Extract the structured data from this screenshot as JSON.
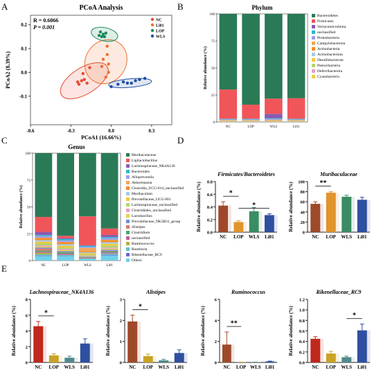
{
  "panels": [
    {
      "letter": "A"
    },
    {
      "letter": "B"
    },
    {
      "letter": "C"
    },
    {
      "letter": "D"
    },
    {
      "letter": "E"
    }
  ],
  "chart_data": [
    {
      "id": "A",
      "type": "scatter",
      "title": "PCoA Analysis",
      "xlabel": "PCoA1 (16.66%)",
      "ylabel": "PCoA2 (8.39%)",
      "xlim": [
        -0.6,
        0.45
      ],
      "ylim": [
        -0.22,
        0.24
      ],
      "xticks": [
        -0.6,
        -0.3,
        0.0,
        0.3
      ],
      "yticks": [
        -0.1,
        0.0,
        0.1,
        0.2
      ],
      "stats": [
        "R = 0.6066",
        "P = 0.001"
      ],
      "groups": [
        {
          "name": "NC",
          "color": "#e64b35",
          "points": [
            [
              -0.22,
              -0.035
            ],
            [
              -0.25,
              -0.04
            ],
            [
              -0.21,
              -0.005
            ],
            [
              -0.2,
              -0.03
            ],
            [
              -0.24,
              -0.05
            ],
            [
              -0.18,
              -0.045
            ],
            [
              -0.16,
              0.02
            ]
          ],
          "ellipse": {
            "cx": -0.2,
            "cy": -0.035,
            "rx": 0.2,
            "ry": 0.055,
            "angle": 32
          }
        },
        {
          "name": "Li01",
          "color": "#ee6f31",
          "points": [
            [
              -0.03,
              0.11
            ],
            [
              -0.03,
              0.075
            ],
            [
              -0.02,
              0.035
            ],
            [
              -0.02,
              0.0
            ],
            [
              -0.04,
              -0.02
            ],
            [
              -0.07,
              0.025
            ],
            [
              -0.06,
              0.055
            ]
          ],
          "ellipse": {
            "cx": -0.04,
            "cy": 0.045,
            "rx": 0.17,
            "ry": 0.085,
            "angle": 55
          }
        },
        {
          "name": "LOP",
          "color": "#1b8a5a",
          "points": [
            [
              -0.09,
              0.155
            ],
            [
              -0.08,
              0.17
            ],
            [
              -0.06,
              0.16
            ],
            [
              -0.04,
              0.165
            ],
            [
              -0.07,
              0.15
            ],
            [
              -0.05,
              0.15
            ]
          ],
          "ellipse": {
            "cx": -0.05,
            "cy": 0.16,
            "rx": 0.1,
            "ry": 0.028,
            "angle": -12
          }
        },
        {
          "name": "WLS",
          "color": "#1f4ea3",
          "points": [
            [
              0.0,
              -0.06
            ],
            [
              0.05,
              -0.05
            ],
            [
              0.09,
              -0.04
            ],
            [
              0.12,
              -0.045
            ],
            [
              0.15,
              -0.045
            ],
            [
              0.18,
              -0.035
            ],
            [
              0.21,
              -0.03
            ],
            [
              0.25,
              -0.025
            ]
          ],
          "ellipse": {
            "cx": 0.14,
            "cy": -0.045,
            "rx": 0.16,
            "ry": 0.018,
            "angle": 5
          }
        }
      ]
    },
    {
      "id": "B",
      "type": "stacked-bar",
      "title": "Phylum",
      "ylabel": "Relative abundance (%)",
      "categories": [
        "NC",
        "LOP",
        "WLS",
        "Li01"
      ],
      "ylim": [
        0,
        100
      ],
      "yticks": [
        0,
        25,
        50,
        75,
        100
      ],
      "series": [
        {
          "name": "Bacteroidetes",
          "color": "#2a7a57",
          "values": [
            70,
            84,
            78,
            78
          ]
        },
        {
          "name": "Firmicutes",
          "color": "#f0555a",
          "values": [
            27,
            13,
            14,
            19
          ]
        },
        {
          "name": "Verrucomicrobiota",
          "color": "#8d5ab0",
          "values": [
            0.2,
            0.2,
            4,
            0.2
          ]
        },
        {
          "name": "unclassified",
          "color": "#2bb9cf",
          "values": [
            0.5,
            0.5,
            0.5,
            0.5
          ]
        },
        {
          "name": "Proteobacteria",
          "color": "#9c9ee8",
          "values": [
            0.5,
            0.5,
            1,
            0.5
          ]
        },
        {
          "name": "Campylobacterota",
          "color": "#f2a65a",
          "values": [
            0.3,
            0.3,
            0.5,
            0.3
          ]
        },
        {
          "name": "Actinobacteria",
          "color": "#f28c28",
          "values": [
            0.3,
            0.3,
            0.3,
            0.3
          ]
        },
        {
          "name": "Actinobacteriota",
          "color": "#a7c8e0",
          "values": [
            0.3,
            0.3,
            0.3,
            0.3
          ]
        },
        {
          "name": "Desulfobacterota",
          "color": "#f3c93a",
          "values": [
            0.3,
            0.3,
            0.3,
            0.3
          ]
        },
        {
          "name": "Patescibacteria",
          "color": "#b5d56a",
          "values": [
            0.2,
            0.2,
            0.2,
            0.2
          ]
        },
        {
          "name": "Deferribacterota",
          "color": "#e89cc4",
          "values": [
            0.2,
            0.2,
            0.2,
            0.2
          ]
        },
        {
          "name": "Cyanobacteria",
          "color": "#e8d14a",
          "values": [
            0.2,
            0.2,
            0.2,
            0.2
          ]
        }
      ]
    },
    {
      "id": "C",
      "type": "stacked-bar",
      "title": "Genus",
      "ylabel": "Relative abundance (%)",
      "categories": [
        "NC",
        "LOP",
        "WLS",
        "Li01"
      ],
      "ylim": [
        0,
        100
      ],
      "yticks": [
        0,
        25,
        50,
        75,
        100
      ],
      "series": [
        {
          "name": "Muribaculaceae",
          "color": "#2a7a57",
          "values": [
            60,
            76,
            59,
            70
          ]
        },
        {
          "name": "Ligilactobacillus",
          "color": "#f0555a",
          "values": [
            14,
            2,
            27,
            6
          ]
        },
        {
          "name": "Lachnospiraceae_NK4A136",
          "color": "#8d5ab0",
          "values": [
            3,
            1,
            0.5,
            2
          ]
        },
        {
          "name": "Bacteroides",
          "color": "#2bb9cf",
          "values": [
            1,
            1,
            1,
            1
          ]
        },
        {
          "name": "Alloprevotella",
          "color": "#9c9ee8",
          "values": [
            1.5,
            1.5,
            1,
            1.5
          ]
        },
        {
          "name": "Akkermansia",
          "color": "#f2a65a",
          "values": [
            0.2,
            0.2,
            3,
            0.2
          ]
        },
        {
          "name": "Clostridia_UCG-014_unclassified",
          "color": "#f28c28",
          "values": [
            2,
            2,
            1,
            2
          ]
        },
        {
          "name": "Muribaculum",
          "color": "#a7c8e0",
          "values": [
            1.5,
            1.5,
            1,
            1.5
          ]
        },
        {
          "name": "Prevotellaceae_UCG-001",
          "color": "#f3c93a",
          "values": [
            1.5,
            1.5,
            1,
            1.5
          ]
        },
        {
          "name": "Lachnospiraceae_unclassified",
          "color": "#b5d56a",
          "values": [
            2,
            1.5,
            1,
            2
          ]
        },
        {
          "name": "Clostridiales_unclassified",
          "color": "#e89cc4",
          "values": [
            1,
            1,
            0.5,
            1
          ]
        },
        {
          "name": "Lactobacillus",
          "color": "#e8d14a",
          "values": [
            1,
            1,
            0.5,
            1
          ]
        },
        {
          "name": "Prevotellaceae_NK3B31_group",
          "color": "#6b8fd6",
          "values": [
            1,
            1,
            0.5,
            1
          ]
        },
        {
          "name": "Alistipes",
          "color": "#d67b6b",
          "values": [
            2,
            0.3,
            0.2,
            0.5
          ]
        },
        {
          "name": "Clostridium",
          "color": "#4aa66b",
          "values": [
            1,
            1,
            0.5,
            1
          ]
        },
        {
          "name": "unclassified",
          "color": "#c05d9e",
          "values": [
            1,
            1,
            0.5,
            1
          ]
        },
        {
          "name": "Ruminococcus",
          "color": "#b0b040",
          "values": [
            1.5,
            0.2,
            0.2,
            0.2
          ]
        },
        {
          "name": "Roseburia",
          "color": "#5ec3c9",
          "values": [
            1,
            1,
            0.5,
            1
          ]
        },
        {
          "name": "Rikenellaceae_RC9",
          "color": "#6a6ad0",
          "values": [
            0.5,
            0.2,
            0.1,
            0.6
          ]
        },
        {
          "name": "Others",
          "color": "#6fd0e8",
          "values": [
            4.3,
            3.9,
            1.3,
            4.8
          ]
        }
      ]
    },
    {
      "id": "D1",
      "type": "bar",
      "title": "Firmicutes/Bacteroidetes",
      "ylabel": "Relative abundance (%)",
      "categories": [
        "NC",
        "LOP",
        "WLS",
        "Li01"
      ],
      "values": [
        0.42,
        0.16,
        0.33,
        0.27
      ],
      "errors": [
        0.06,
        0.02,
        0.06,
        0.02
      ],
      "ylim": [
        0,
        0.8
      ],
      "yticks": [
        0.0,
        0.2,
        0.4,
        0.6,
        0.8
      ],
      "colors": [
        "#9e4a2a",
        "#e0942b",
        "#3a8c62",
        "#2f4fa0"
      ],
      "significance": [
        {
          "from": 0,
          "to": 1,
          "label": "*"
        },
        {
          "from": 1,
          "to": 3,
          "label": "*"
        }
      ]
    },
    {
      "id": "D2",
      "type": "bar",
      "title": "Muribaculaceae",
      "ylabel": "Relative abundance (%)",
      "categories": [
        "NC",
        "LOP",
        "WLS",
        "Li01"
      ],
      "values": [
        56,
        78,
        70,
        64
      ],
      "errors": [
        4,
        2,
        3,
        5
      ],
      "ylim": [
        0,
        100
      ],
      "yticks": [
        0,
        20,
        40,
        60,
        80,
        100
      ],
      "colors": [
        "#9e4a2a",
        "#e0942b",
        "#3a8c62",
        "#2f4fa0"
      ],
      "significance": [
        {
          "from": 0,
          "to": 1,
          "label": "**"
        }
      ]
    },
    {
      "id": "E1",
      "type": "bar",
      "title": "Lachnospiraceae_NK4A136",
      "ylabel": "Relative abundance (%)",
      "categories": [
        "NC",
        "LOP",
        "WLS",
        "Li01"
      ],
      "values": [
        4.6,
        0.9,
        0.6,
        2.4
      ],
      "errors": [
        0.6,
        0.2,
        0.2,
        0.6
      ],
      "ylim": [
        0,
        8
      ],
      "yticks": [
        0,
        2,
        4,
        6,
        8
      ],
      "colors": [
        "#c0281d",
        "#c9a325",
        "#4f8a8a",
        "#2f4fa0"
      ],
      "significance": [
        {
          "from": 0,
          "to": 1,
          "label": "*"
        }
      ]
    },
    {
      "id": "E2",
      "type": "bar",
      "title": "Alistipes",
      "ylabel": "Relative abundance (%)",
      "categories": [
        "NC",
        "LOP",
        "WLS",
        "Li01"
      ],
      "values": [
        1.95,
        0.3,
        0.1,
        0.45
      ],
      "errors": [
        0.3,
        0.1,
        0.05,
        0.15
      ],
      "ylim": [
        0,
        3
      ],
      "yticks": [
        0,
        1,
        2,
        3
      ],
      "colors": [
        "#9e4a2a",
        "#c9a325",
        "#4f8a8a",
        "#2f4fa0"
      ],
      "significance": [
        {
          "from": 0,
          "to": 1,
          "label": "*"
        }
      ]
    },
    {
      "id": "E3",
      "type": "bar",
      "title": "Ruminococcus",
      "ylabel": "Relative abundance (%)",
      "categories": [
        "NC",
        "LOP",
        "WLS",
        "Li01"
      ],
      "values": [
        1.7,
        0.02,
        0.02,
        0.1
      ],
      "errors": [
        1.2,
        0.01,
        0.01,
        0.03
      ],
      "ylim": [
        0,
        6
      ],
      "yticks": [
        0,
        2,
        4,
        6
      ],
      "colors": [
        "#9e4a2a",
        "#c9a325",
        "#4f8a8a",
        "#2f4fa0"
      ],
      "significance": [
        {
          "from": 0,
          "to": 1,
          "label": "**"
        }
      ]
    },
    {
      "id": "E4",
      "type": "bar",
      "title": "Rikenellaceae_RC9",
      "ylabel": "Relative abundance (%)",
      "categories": [
        "NC",
        "LOP",
        "WLS",
        "Li01"
      ],
      "values": [
        0.45,
        0.17,
        0.1,
        0.61
      ],
      "errors": [
        0.04,
        0.04,
        0.02,
        0.12
      ],
      "ylim": [
        0,
        1.2
      ],
      "yticks": [
        0.0,
        0.2,
        0.4,
        0.6,
        0.8,
        1.0,
        1.2
      ],
      "colors": [
        "#c0281d",
        "#c9a325",
        "#4f8a8a",
        "#2f4fa0"
      ],
      "significance": [
        {
          "from": 2,
          "to": 3,
          "label": "*"
        }
      ]
    }
  ]
}
